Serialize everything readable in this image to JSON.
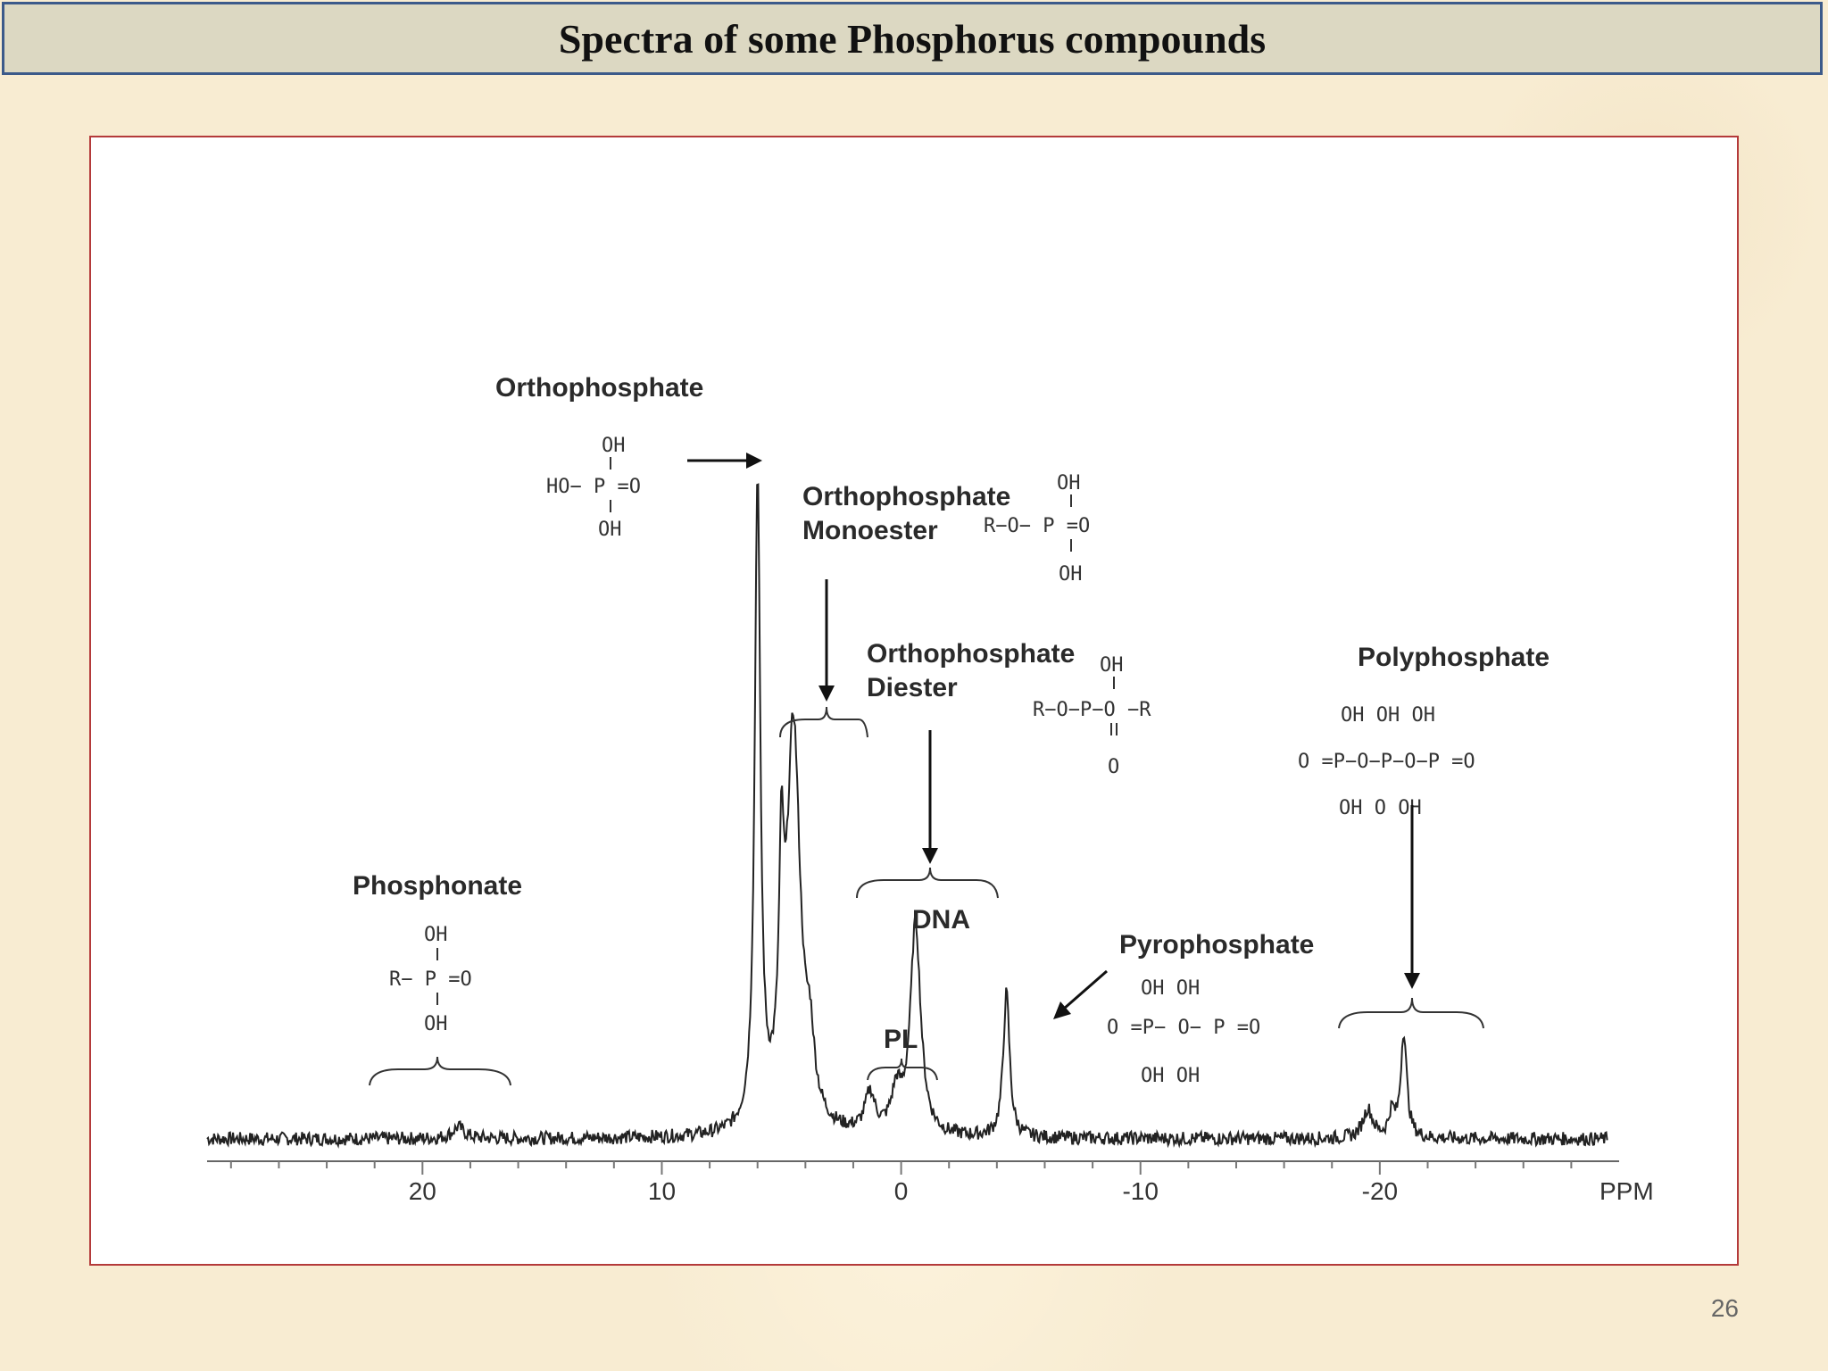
{
  "slide": {
    "title": "Spectra of  some Phosphorus compounds",
    "page_number": "26"
  },
  "chart_data": {
    "type": "line",
    "xlabel": "PPM",
    "xlim": [
      29,
      -30
    ],
    "x_reversed": true,
    "x_ticks": [
      20,
      10,
      0,
      -10,
      -20
    ],
    "x_tick_labels": [
      "20",
      "10",
      "0",
      "-10",
      "-20"
    ],
    "y_visible": false,
    "grid": false,
    "peaks": [
      {
        "x": 6.0,
        "height": 0.67,
        "width": 0.14
      },
      {
        "x": 5.0,
        "height": 0.21,
        "width": 0.12
      },
      {
        "x": 4.5,
        "height": 0.42,
        "width": 0.35
      },
      {
        "x": 3.8,
        "height": 0.06,
        "width": 0.2
      },
      {
        "x": 1.3,
        "height": 0.04,
        "width": 0.25
      },
      {
        "x": 0.2,
        "height": 0.04,
        "width": 0.25
      },
      {
        "x": -0.6,
        "height": 0.22,
        "width": 0.26
      },
      {
        "x": -4.4,
        "height": 0.15,
        "width": 0.16
      },
      {
        "x": -19.5,
        "height": 0.03,
        "width": 0.25
      },
      {
        "x": -20.5,
        "height": 0.025,
        "width": 0.15
      },
      {
        "x": -21.0,
        "height": 0.11,
        "width": 0.15
      },
      {
        "x": 18.5,
        "height": 0.012,
        "width": 0.3
      }
    ],
    "annotations": [
      {
        "id": "orthophosphate",
        "label": "Orthophosphate",
        "structure": [
          "OH",
          "HO− P =O",
          "OH"
        ]
      },
      {
        "id": "monoester",
        "label": "Orthophosphate Monoester",
        "lines": [
          "Orthophosphate",
          "Monoester"
        ],
        "structure": [
          "OH",
          "R−O− P =O",
          "OH"
        ]
      },
      {
        "id": "diester",
        "label": "Orthophosphate Diester",
        "lines": [
          "Orthophosphate",
          "Diester"
        ],
        "structure": [
          "OH",
          "R−O−P−O −R",
          "O"
        ]
      },
      {
        "id": "polyphosphate",
        "label": "Polyphosphate",
        "structure": [
          "OH     OH     OH",
          "O =P−O−P−O−P =O",
          "OH     O      OH"
        ]
      },
      {
        "id": "phosphonate",
        "label": "Phosphonate",
        "structure": [
          "OH",
          "R− P =O",
          "OH"
        ]
      },
      {
        "id": "dna",
        "label": "DNA"
      },
      {
        "id": "pl",
        "label": "PL"
      },
      {
        "id": "pyrophosphate",
        "label": "Pyrophosphate",
        "structure": [
          "OH     OH",
          "O =P− O− P =O",
          "OH     OH"
        ]
      }
    ]
  }
}
